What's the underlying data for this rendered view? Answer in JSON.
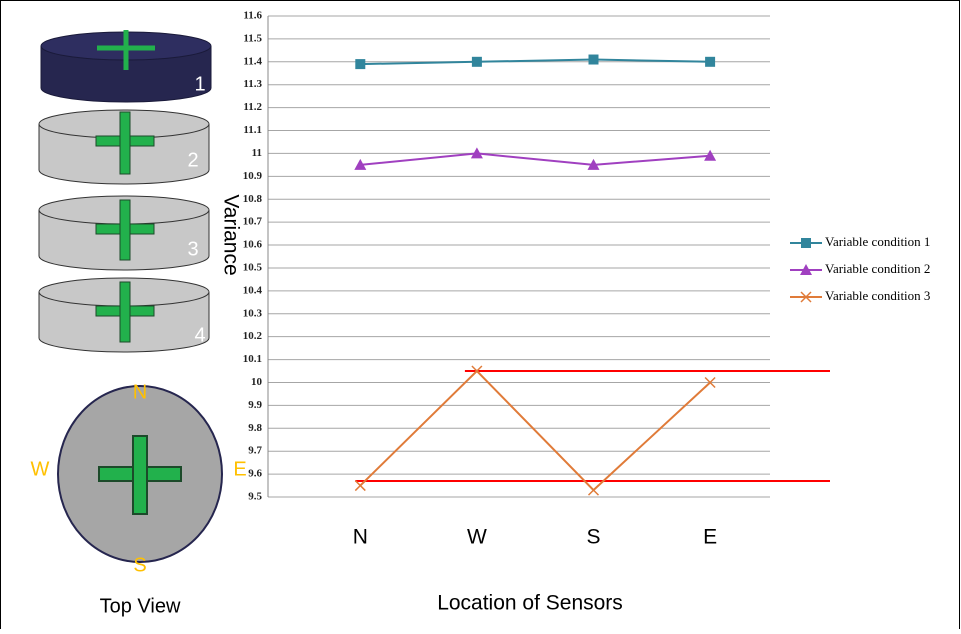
{
  "chart_data": {
    "type": "line",
    "xlabel": "Location of Sensors",
    "ylabel": "Variance",
    "categories": [
      "N",
      "W",
      "S",
      "E"
    ],
    "series": [
      {
        "name": "Variable condition 1",
        "color": "#31859c",
        "marker": "square",
        "values": [
          11.39,
          11.4,
          11.41,
          11.4
        ]
      },
      {
        "name": "Variable condition 2",
        "color": "#a040c0",
        "marker": "triangle",
        "values": [
          10.95,
          11.0,
          10.95,
          10.99
        ]
      },
      {
        "name": "Variable condition 3",
        "color": "#e07b39",
        "marker": "x",
        "values": [
          9.55,
          10.05,
          9.53,
          10.0
        ]
      }
    ],
    "reference_lines": [
      10.05,
      9.57
    ],
    "reference_color": "#ff0000",
    "ylim": [
      9.5,
      11.6
    ],
    "yticks": [
      9.5,
      9.6,
      9.7,
      9.8,
      9.9,
      10,
      10.1,
      10.2,
      10.3,
      10.4,
      10.5,
      10.6,
      10.7,
      10.8,
      10.9,
      11,
      11.1,
      11.2,
      11.3,
      11.4,
      11.5,
      11.6
    ],
    "grid": true,
    "legend": "right"
  },
  "diagram": {
    "layers": [
      "1",
      "2",
      "3",
      "4"
    ],
    "compass": {
      "north": "N",
      "west": "W",
      "east": "E",
      "south": "S"
    },
    "caption": "Top View"
  }
}
